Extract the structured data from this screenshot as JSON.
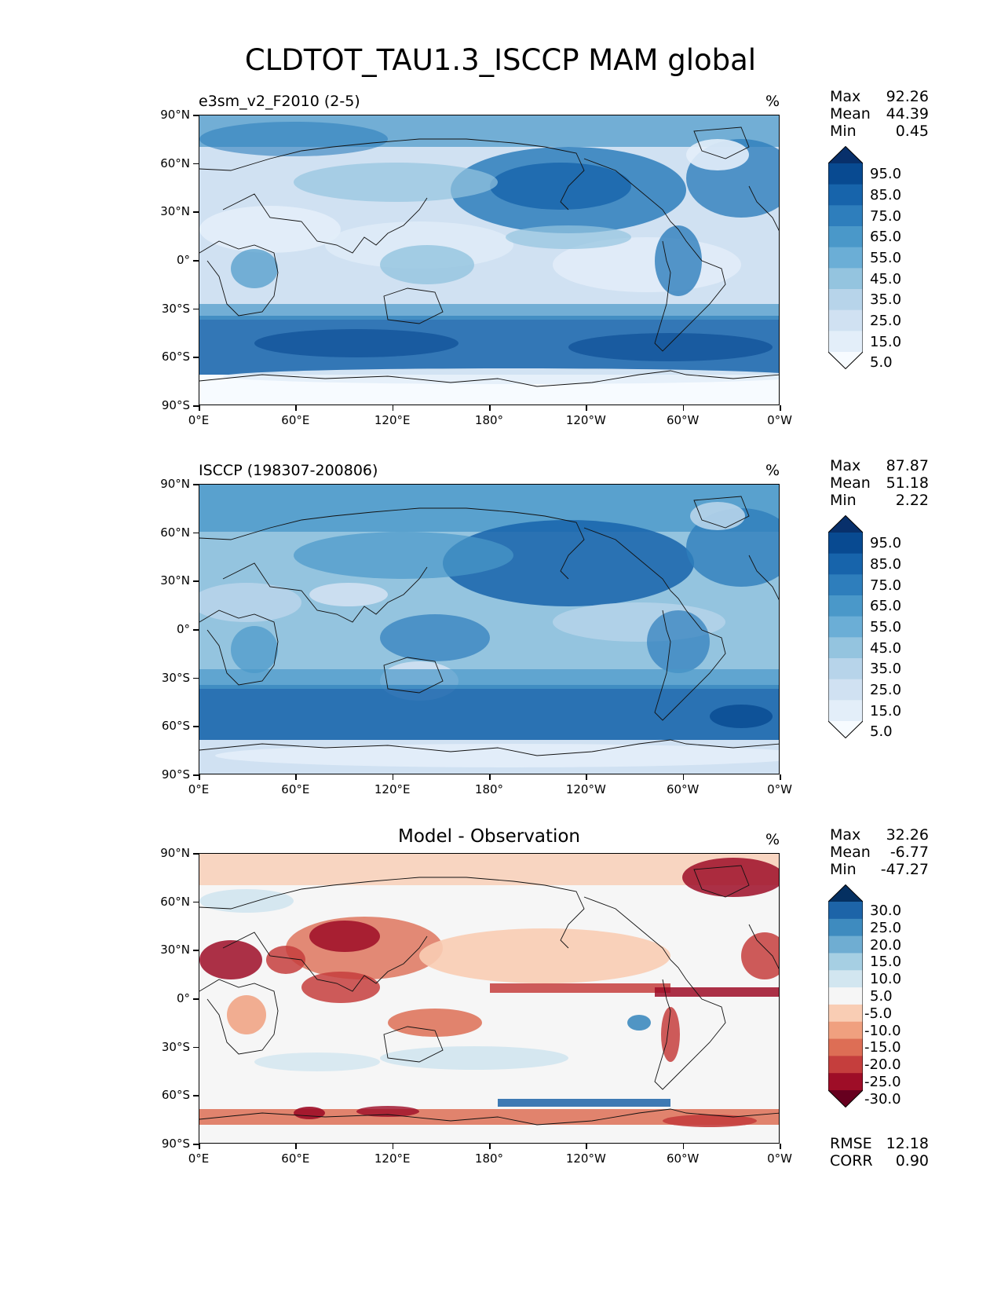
{
  "figure": {
    "title": "CLDTOT_TAU1.3_ISCCP MAM global"
  },
  "axes": {
    "lat_labels": [
      "90°N",
      "60°N",
      "30°N",
      "0°",
      "30°S",
      "60°S",
      "90°S"
    ],
    "lon_labels": [
      "0°E",
      "60°E",
      "120°E",
      "180°",
      "120°W",
      "60°W",
      "0°W"
    ]
  },
  "panels": [
    {
      "title": "e3sm_v2_F2010 (2-5)",
      "unit": "%",
      "stats": [
        {
          "label": "Max",
          "value": "92.26"
        },
        {
          "label": "Mean",
          "value": "44.39"
        },
        {
          "label": "Min",
          "value": "0.45"
        }
      ],
      "colorbar_labels": [
        "95.0",
        "85.0",
        "75.0",
        "65.0",
        "55.0",
        "45.0",
        "35.0",
        "25.0",
        "15.0",
        "5.0"
      ]
    },
    {
      "title": "ISCCP (198307-200806)",
      "unit": "%",
      "stats": [
        {
          "label": "Max",
          "value": "87.87"
        },
        {
          "label": "Mean",
          "value": "51.18"
        },
        {
          "label": "Min",
          "value": "2.22"
        }
      ],
      "colorbar_labels": [
        "95.0",
        "85.0",
        "75.0",
        "65.0",
        "55.0",
        "45.0",
        "35.0",
        "25.0",
        "15.0",
        "5.0"
      ]
    },
    {
      "title": "Model - Observation",
      "unit": "%",
      "stats": [
        {
          "label": "Max",
          "value": "32.26"
        },
        {
          "label": "Mean",
          "value": "-6.77"
        },
        {
          "label": "Min",
          "value": "-47.27"
        }
      ],
      "colorbar_labels": [
        "30.0",
        "25.0",
        "20.0",
        "15.0",
        "10.0",
        "5.0",
        "-5.0",
        "-10.0",
        "-15.0",
        "-20.0",
        "-25.0",
        "-30.0"
      ],
      "metrics": [
        {
          "label": "RMSE",
          "value": "12.18"
        },
        {
          "label": "CORR",
          "value": "0.90"
        }
      ]
    }
  ],
  "colors": {
    "blues": [
      "#f7fbff",
      "#e3eef9",
      "#d0e1f2",
      "#b7d4ea",
      "#94c4df",
      "#6baed6",
      "#4a98c9",
      "#2e7ebc",
      "#1764ab",
      "#084a91",
      "#08306b"
    ],
    "diverging": [
      "#67001f",
      "#9e0d27",
      "#c53e3d",
      "#dd6e55",
      "#f0a07f",
      "#f9cdb4",
      "#f6f6f6",
      "#d2e6f0",
      "#a6cfe3",
      "#6fadd2",
      "#3e8bbf",
      "#1d64a8",
      "#053061"
    ]
  }
}
